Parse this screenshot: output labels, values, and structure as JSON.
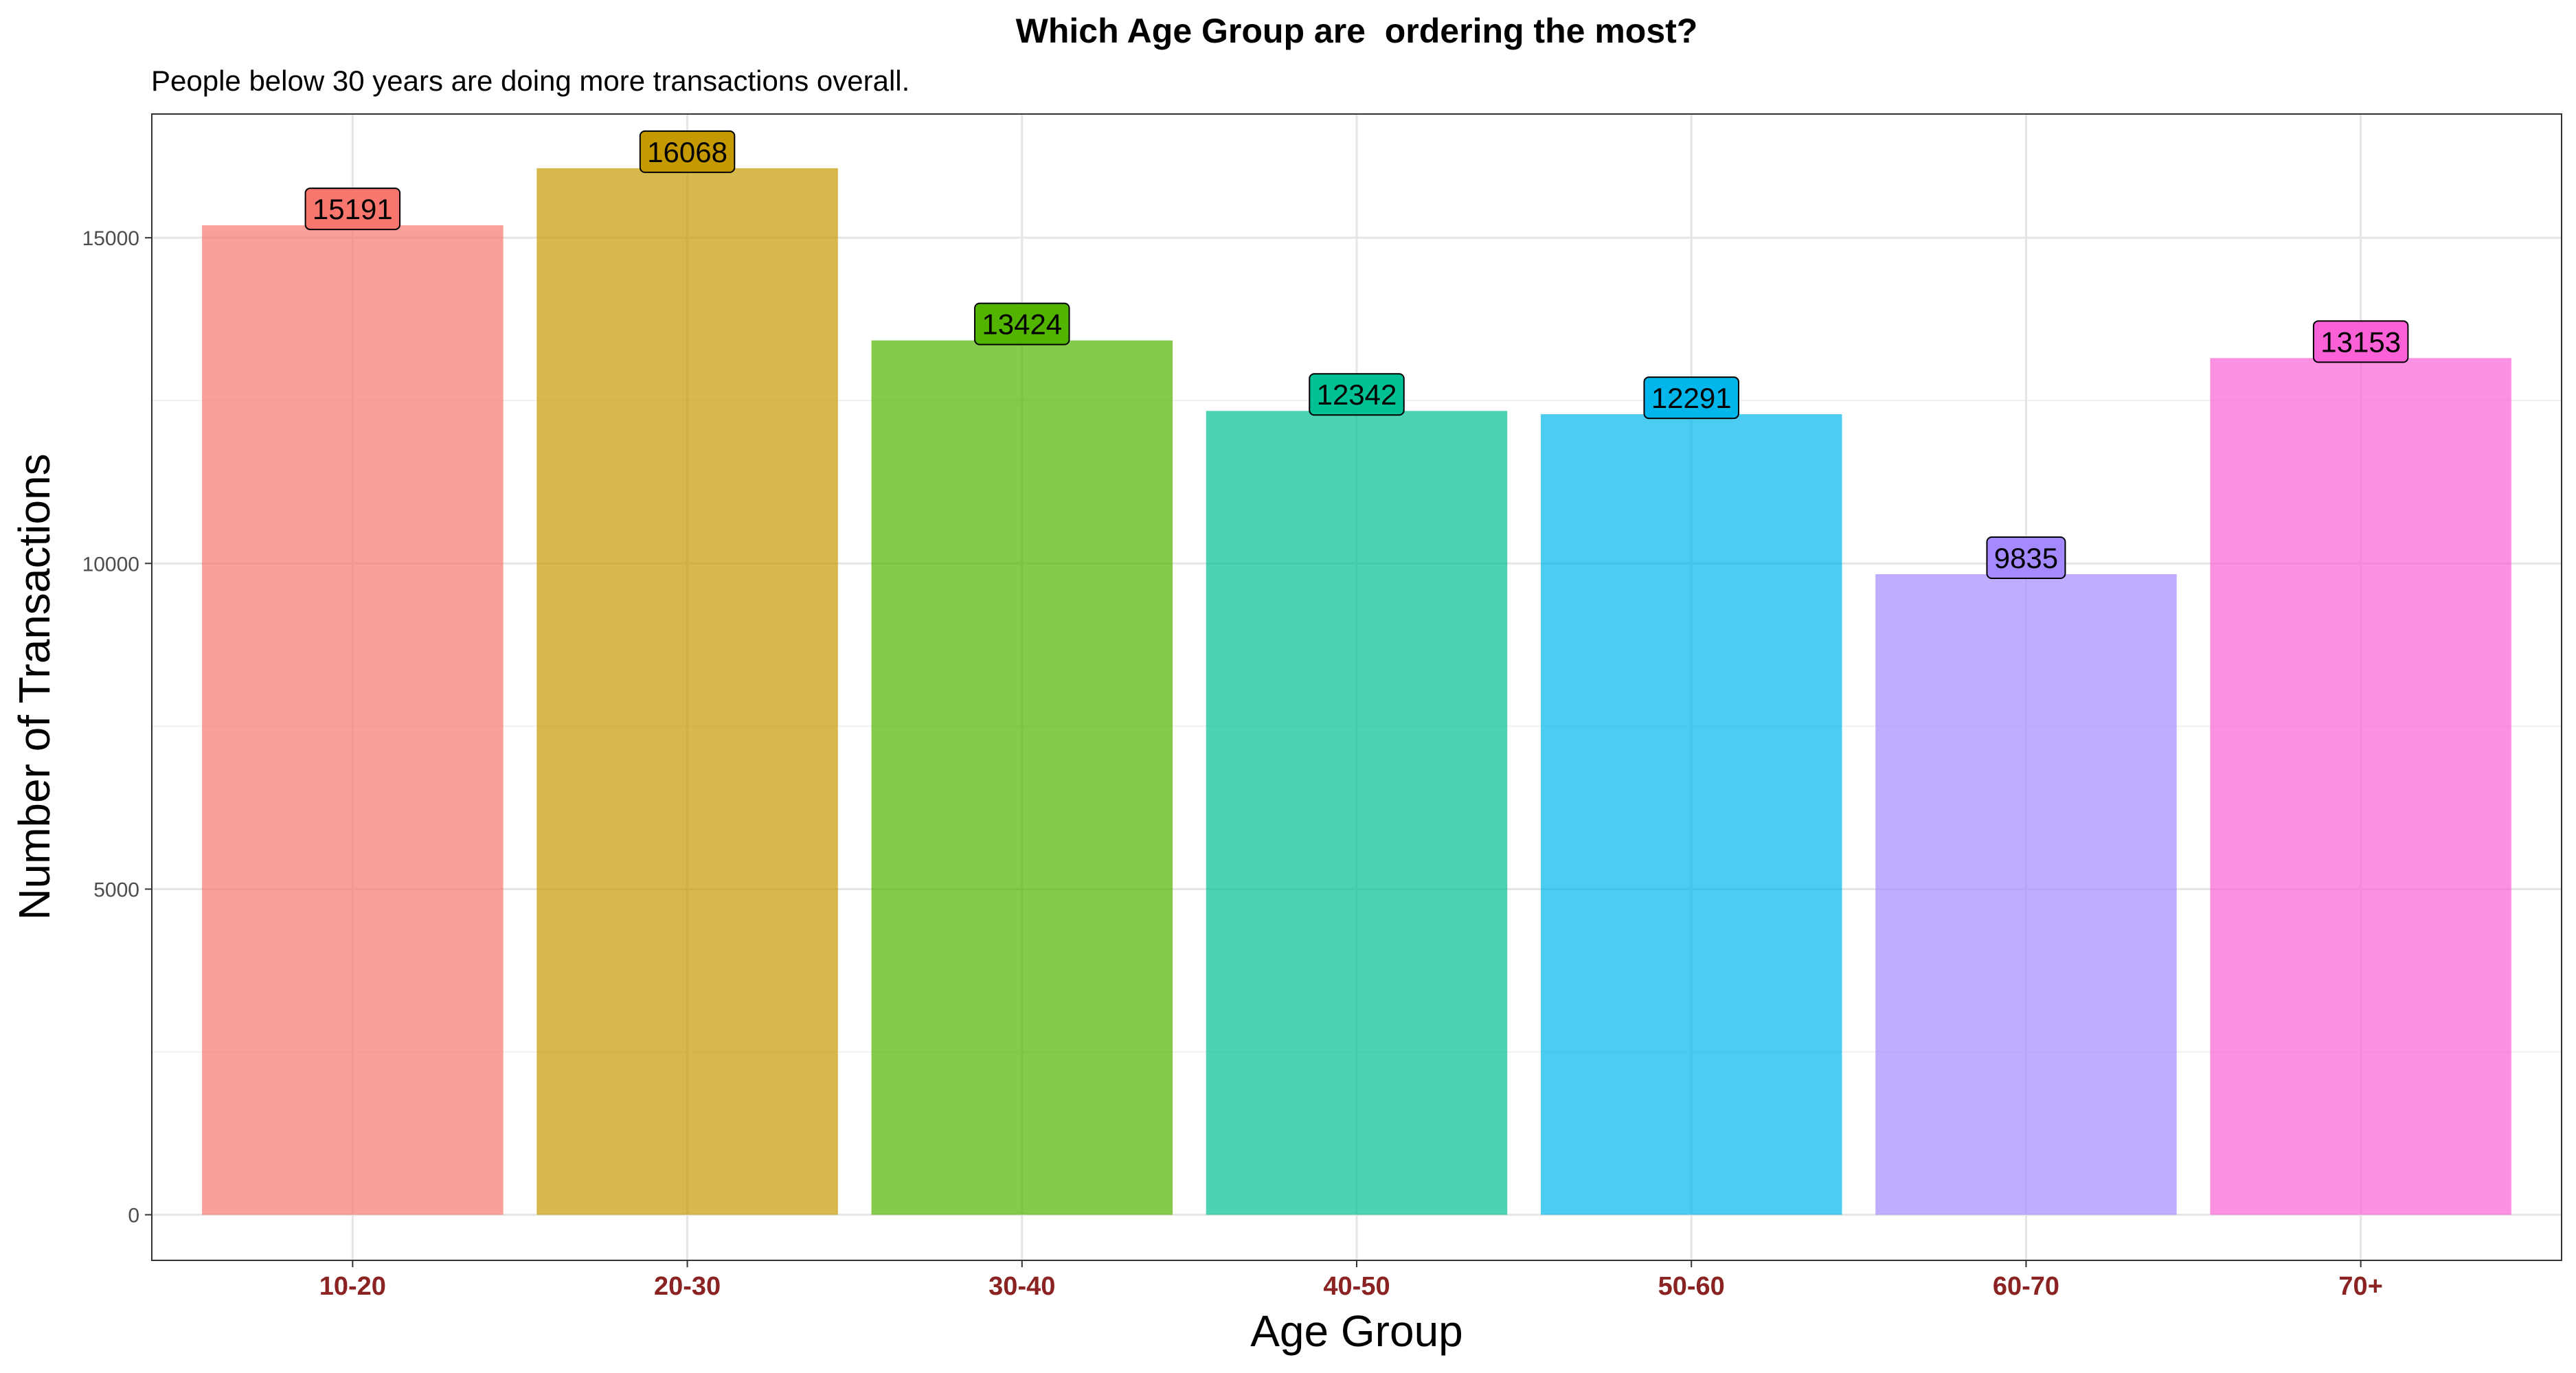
{
  "chart_data": {
    "type": "bar",
    "title": "Which Age Group are  ordering the most?",
    "subtitle": "People below 30 years are doing more transactions overall.",
    "xlabel": "Age Group",
    "ylabel": "Number of Transactions",
    "categories": [
      "10-20",
      "20-30",
      "30-40",
      "40-50",
      "50-60",
      "60-70",
      "70+"
    ],
    "values": [
      15191,
      16068,
      13424,
      12342,
      12291,
      9835,
      13153
    ],
    "data_labels": [
      "15191",
      "16068",
      "13424",
      "12342",
      "12291",
      "9835",
      "13153"
    ],
    "bar_colors": [
      "#F8766D",
      "#C49A00",
      "#53B400",
      "#00C094",
      "#00B6EB",
      "#A58AFF",
      "#FB61D7"
    ],
    "bar_opacity": 0.7,
    "yticks": [
      0,
      5000,
      10000,
      15000
    ],
    "ytick_labels": [
      "0",
      "5000",
      "10000",
      "15000"
    ],
    "ylim": [
      -700,
      16900
    ],
    "grid": true,
    "legend": "none",
    "tick_label_color": "#8B2323"
  }
}
